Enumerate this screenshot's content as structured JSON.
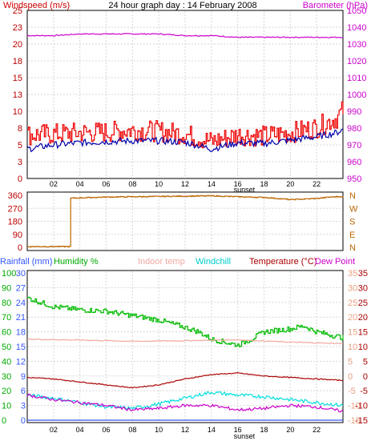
{
  "header": {
    "left_title": "Windspeed (m/s)",
    "center_title": "24 hour graph day : 14 February 2008",
    "right_title": "Barometer (hPa)"
  },
  "x_axis": {
    "ticks": [
      "02",
      "04",
      "06",
      "08",
      "10",
      "12",
      "14",
      "16",
      "18",
      "20",
      "22"
    ],
    "sunset_label": "sunset"
  },
  "legend_bottom": {
    "rainfall": "Rainfall (mm)",
    "humidity": "Humidity %",
    "indoor": "Indoor temp",
    "windchill": "Windchill",
    "temperature": "Temperature (°C)",
    "dewpoint": "Dew Point"
  },
  "colors": {
    "windspeed": "#ee0000",
    "windavg": "#0000aa",
    "barometer": "#cc00cc",
    "direction": "#bb6600",
    "humidity": "#00bb00",
    "indoor": "#f0a8a0",
    "windchill": "#00dddd",
    "temperature": "#aa0000",
    "dewpoint": "#cc00cc",
    "rainfall": "#3355ff",
    "grid": "#d6d6d6",
    "left_axis": "#bb0000",
    "right_axis": "#cc00cc"
  },
  "chart_data": [
    {
      "type": "line",
      "title": "24 hour graph day : 14 February 2008",
      "x_range": [
        0,
        24
      ],
      "y_left": {
        "label": "Windspeed (m/s)",
        "ticks": [
          0,
          3,
          5,
          8,
          10,
          13,
          15,
          18,
          20,
          23,
          25
        ],
        "range": [
          0,
          25
        ]
      },
      "y_right": {
        "label": "Barometer (hPa)",
        "ticks": [
          950,
          960,
          970,
          980,
          990,
          1000,
          1010,
          1020,
          1030,
          1040,
          1050
        ],
        "range": [
          950,
          1050
        ]
      },
      "series": [
        {
          "name": "Windspeed (m/s)",
          "axis": "left",
          "x": [
            0,
            2,
            4,
            6,
            8,
            10,
            12,
            13,
            14,
            16,
            18,
            20,
            22,
            23.5,
            24
          ],
          "y": [
            6.5,
            6.6,
            6.8,
            6.9,
            7.2,
            7.0,
            6.6,
            6.0,
            5.5,
            6.5,
            6.3,
            6.8,
            7.6,
            9.0,
            10.2
          ]
        },
        {
          "x": [
            0,
            2,
            4,
            6,
            8,
            10,
            12,
            13,
            14,
            16,
            18,
            20,
            22,
            23.5,
            24
          ],
          "y": [
            4.4,
            5.0,
            5.3,
            5.5,
            5.6,
            5.6,
            5.4,
            4.9,
            4.4,
            5.3,
            5.2,
            5.7,
            6.2,
            6.8,
            7.3
          ]
        },
        {
          "name": "Barometer (hPa)",
          "axis": "right",
          "x": [
            0,
            2,
            4,
            6,
            8,
            10,
            12,
            14,
            16,
            18,
            20,
            22,
            24
          ],
          "y": [
            1035,
            1035,
            1036,
            1036,
            1036,
            1036,
            1035,
            1035,
            1034,
            1034,
            1034,
            1034,
            1034
          ]
        }
      ]
    },
    {
      "type": "line",
      "x_range": [
        0,
        24
      ],
      "y_left": {
        "ticks": [
          0,
          90,
          180,
          270,
          360
        ],
        "range": [
          0,
          360
        ]
      },
      "y_right": {
        "ticks": [
          "N",
          "W",
          "S",
          "E",
          "N"
        ]
      },
      "series": [
        {
          "x": [
            0,
            3.2,
            3.25,
            6,
            10,
            14,
            16,
            18,
            20,
            22,
            23,
            24
          ],
          "y": [
            5,
            5,
            340,
            348,
            352,
            356,
            350,
            345,
            330,
            338,
            348,
            352
          ]
        }
      ]
    },
    {
      "type": "line",
      "x_range": [
        0,
        24
      ],
      "y_axes": {
        "humidity": {
          "ticks": [
            0,
            10,
            20,
            30,
            40,
            50,
            60,
            70,
            80,
            90,
            100
          ],
          "range": [
            0,
            100
          ]
        },
        "rainfall": {
          "ticks": [
            0,
            3,
            6,
            9,
            12,
            15,
            18,
            21,
            24,
            27,
            30
          ],
          "range": [
            0,
            30
          ]
        },
        "temperature": {
          "ticks": [
            -15,
            -10,
            -5,
            0,
            5,
            10,
            15,
            20,
            25,
            30,
            35
          ],
          "range": [
            -15,
            35
          ]
        }
      },
      "series": [
        {
          "name": "Humidity %",
          "axis": "humidity",
          "x": [
            0,
            1,
            2,
            4,
            6,
            8,
            10,
            12,
            13,
            14,
            15,
            16,
            17,
            18,
            20,
            21,
            22,
            24
          ],
          "y": [
            83,
            80,
            77,
            75,
            74,
            71,
            68,
            63,
            60,
            55,
            53,
            51,
            55,
            60,
            62,
            64,
            60,
            56
          ]
        },
        {
          "name": "Indoor temp",
          "axis": "temperature",
          "x": [
            0,
            4,
            8,
            12,
            16,
            20,
            24
          ],
          "y": [
            12.5,
            12.2,
            11.8,
            12.0,
            12.3,
            11.5,
            11.0
          ]
        },
        {
          "name": "Windchill",
          "axis": "temperature",
          "x": [
            0,
            2,
            4,
            6,
            8,
            10,
            12,
            14,
            16,
            18,
            20,
            22,
            24
          ],
          "y": [
            -6.5,
            -7.5,
            -9,
            -10.5,
            -11,
            -9.5,
            -7.5,
            -5.5,
            -6.5,
            -7,
            -8,
            -9,
            -10
          ]
        },
        {
          "name": "Temperature (°C)",
          "axis": "temperature",
          "x": [
            0,
            2,
            4,
            6,
            8,
            10,
            12,
            14,
            16,
            18,
            20,
            22,
            24
          ],
          "y": [
            -0.5,
            -1,
            -2,
            -3,
            -4,
            -3,
            -1,
            0.5,
            1,
            0,
            -0.5,
            -1,
            -1.5
          ]
        },
        {
          "name": "Dew Point",
          "axis": "temperature",
          "x": [
            0,
            2,
            4,
            6,
            8,
            10,
            12,
            14,
            16,
            18,
            20,
            22,
            24
          ],
          "y": [
            -6.5,
            -8,
            -9,
            -10,
            -11.5,
            -11,
            -10,
            -10,
            -11.5,
            -11,
            -10,
            -10.5,
            -12
          ]
        },
        {
          "name": "Rainfall (mm)",
          "axis": "rainfall",
          "x": [
            0,
            24
          ],
          "y": [
            0,
            0
          ]
        }
      ]
    }
  ]
}
